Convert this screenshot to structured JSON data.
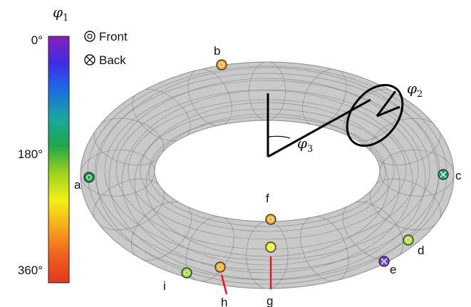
{
  "colorbar": {
    "title_symbol": "φ",
    "title_subscript": "1",
    "tick_labels": [
      "0°",
      "180°",
      "360°"
    ],
    "gradient_colors": [
      "#8a1fb5",
      "#3d2ce6",
      "#1a6fe0",
      "#18a8a0",
      "#1fa84a",
      "#9ed11d",
      "#f3f01a",
      "#f7a61a",
      "#f0601e",
      "#e03a1e"
    ]
  },
  "legend": {
    "front_label": "Front",
    "back_label": "Back"
  },
  "angles": {
    "phi2_symbol": "φ",
    "phi2_subscript": "2",
    "phi3_symbol": "φ",
    "phi3_subscript": "3"
  },
  "points": [
    {
      "label": "a",
      "side": "front",
      "color": "#1f9a4a"
    },
    {
      "label": "b",
      "side": "front",
      "color": "#f5a623"
    },
    {
      "label": "c",
      "side": "back",
      "color": "#1aa37a"
    },
    {
      "label": "d",
      "side": "front",
      "color": "#a8d83a"
    },
    {
      "label": "e",
      "side": "back",
      "color": "#7b3fe0"
    },
    {
      "label": "f",
      "side": "front",
      "color": "#f5a623"
    },
    {
      "label": "g",
      "side": "front",
      "color": "#e8ec1e"
    },
    {
      "label": "h",
      "side": "front",
      "color": "#f5a623"
    },
    {
      "label": "i",
      "side": "front",
      "color": "#8fd63a"
    }
  ],
  "colors": {
    "torus_fill": "#c9c9c9",
    "torus_edge": "#8c8c8c",
    "pointer_line": "#e31a1c"
  }
}
